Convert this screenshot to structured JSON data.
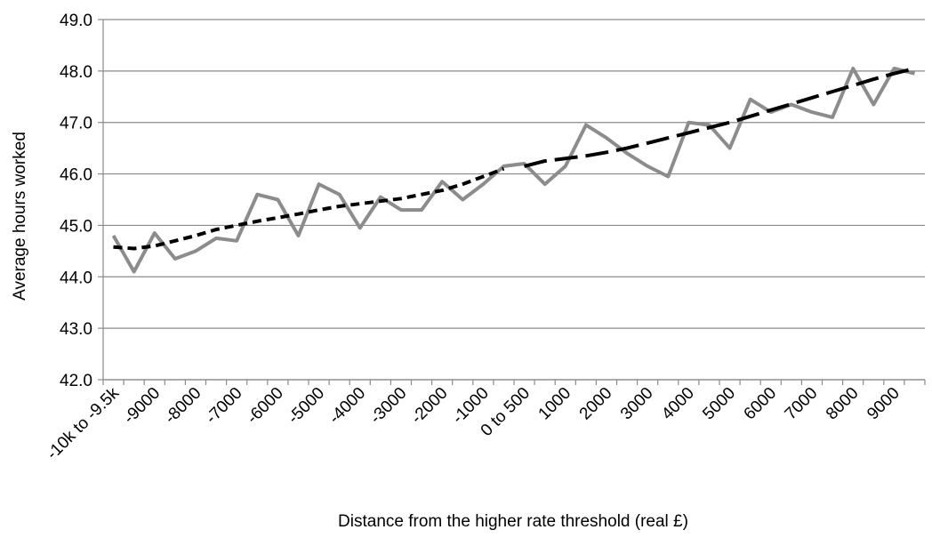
{
  "chart_data": {
    "type": "line",
    "title": "",
    "xlabel": "Distance from the higher rate threshold (real £)",
    "ylabel": "Average hours worked",
    "ylim": [
      42.0,
      49.0
    ],
    "yticks": [
      "42.0",
      "43.0",
      "44.0",
      "45.0",
      "46.0",
      "47.0",
      "48.0",
      "49.0"
    ],
    "grid": true,
    "legend": "none",
    "x_tick_labels": [
      "-10k to -9.5k",
      "-9000",
      "-8000",
      "-7000",
      "-6000",
      "-5000",
      "-4000",
      "-3000",
      "-2000",
      "-1000",
      "0 to 500",
      "1000",
      "2000",
      "3000",
      "4000",
      "5000",
      "6000",
      "7000",
      "8000",
      "9000"
    ],
    "x_tick_indices": [
      0,
      2,
      4,
      6,
      8,
      10,
      12,
      14,
      16,
      18,
      20,
      22,
      24,
      26,
      28,
      30,
      32,
      34,
      36,
      38
    ],
    "n_categories": 40,
    "series": [
      {
        "style": "solid",
        "color": "#8c8c8c",
        "values": [
          44.8,
          44.1,
          44.85,
          44.35,
          44.5,
          44.75,
          44.7,
          45.6,
          45.5,
          44.8,
          45.8,
          45.6,
          44.95,
          45.55,
          45.3,
          45.3,
          45.85,
          45.5,
          45.8,
          46.15,
          46.2,
          45.8,
          46.15,
          46.95,
          46.7,
          46.4,
          46.15,
          45.95,
          47.0,
          46.95,
          46.5,
          47.45,
          47.2,
          47.35,
          47.2,
          47.1,
          48.05,
          47.35,
          48.05,
          47.95
        ]
      },
      {
        "style": "dashed-trend-below-threshold",
        "color": "#000000",
        "values": [
          44.58,
          44.55,
          44.6,
          44.7,
          44.8,
          44.92,
          45.0,
          45.08,
          45.15,
          45.22,
          45.3,
          45.37,
          45.42,
          45.47,
          45.52,
          45.6,
          45.68,
          45.8,
          45.95,
          46.1
        ]
      },
      {
        "style": "dashed-trend-above-threshold",
        "color": "#000000",
        "values": [
          46.15,
          46.25,
          46.3,
          46.35,
          46.42,
          46.5,
          46.6,
          46.7,
          46.8,
          46.9,
          47.0,
          47.12,
          47.24,
          47.36,
          47.48,
          47.6,
          47.72,
          47.84,
          47.95,
          48.05
        ]
      }
    ]
  }
}
